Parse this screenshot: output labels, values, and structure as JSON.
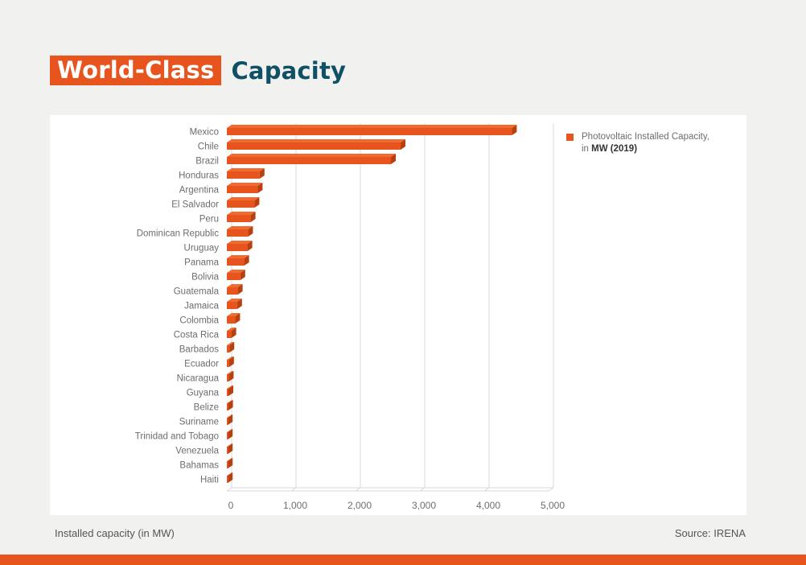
{
  "title": {
    "highlight": "World-Class",
    "rest": "Capacity"
  },
  "legend": {
    "text": "Photovoltaic Installed Capacity, in ",
    "bold": "MW (2019)"
  },
  "footer": {
    "note": "Installed capacity (in MW)",
    "source": "Source: IRENA"
  },
  "colors": {
    "bar": "#e8541e",
    "bar_top": "#f06a32",
    "bar_end": "#b8400f",
    "grid": "#d9d9d9",
    "text": "#6d6d6d"
  },
  "chart_data": {
    "type": "bar",
    "orientation": "horizontal",
    "title": "",
    "xlabel": "",
    "ylabel": "",
    "xlim": [
      0,
      5000
    ],
    "ticks": [
      "0",
      "1,000",
      "2,000",
      "3,000",
      "4,000",
      "5,000"
    ],
    "tick_values": [
      0,
      1000,
      2000,
      3000,
      4000,
      5000
    ],
    "grid": true,
    "legend_position": "top-right",
    "categories": [
      "Mexico",
      "Chile",
      "Brazil",
      "Honduras",
      "Argentina",
      "El Salvador",
      "Peru",
      "Dominican Republic",
      "Uruguay",
      "Panama",
      "Bolivia",
      "Guatemala",
      "Jamaica",
      "Colombia",
      "Costa Rica",
      "Barbados",
      "Ecuador",
      "Nicaragua",
      "Guyana",
      "Belize",
      "Suriname",
      "Trinidad and Tobago",
      "Venezuela",
      "Bahamas",
      "Haiti"
    ],
    "series": [
      {
        "name": "Photovoltaic Installed Capacity, in MW (2019)",
        "values": [
          4430,
          2700,
          2550,
          510,
          480,
          430,
          370,
          330,
          320,
          270,
          210,
          170,
          160,
          130,
          70,
          40,
          35,
          30,
          25,
          20,
          15,
          15,
          15,
          15,
          15
        ]
      }
    ]
  }
}
